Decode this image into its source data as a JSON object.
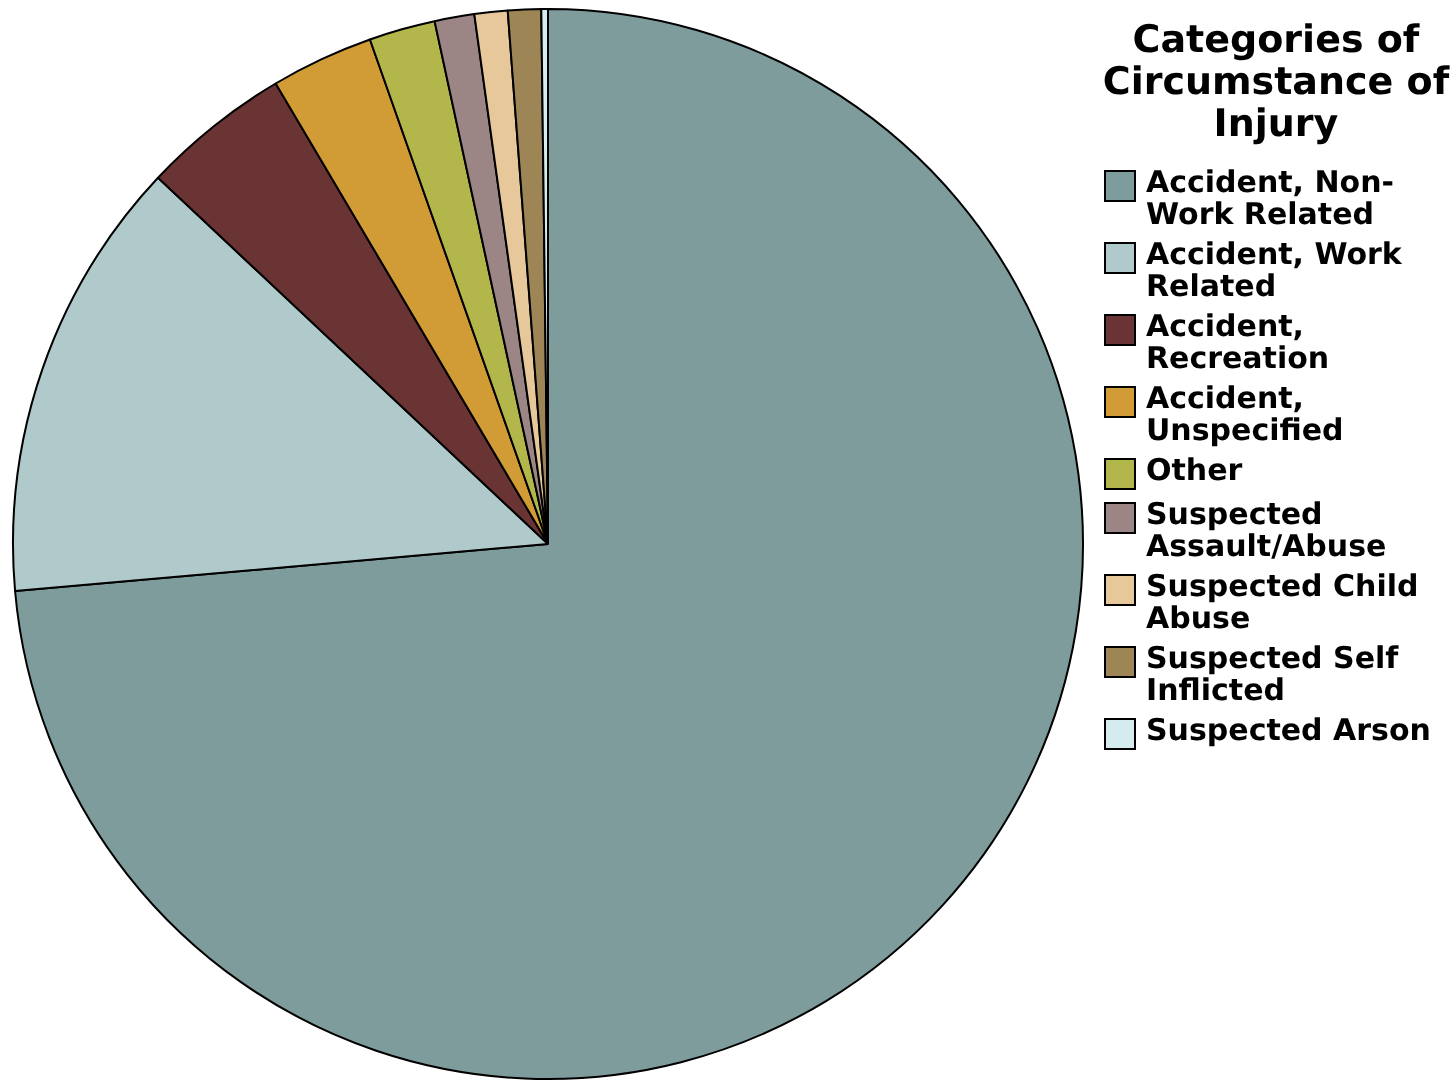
{
  "chart_data": {
    "type": "pie",
    "legend_title": "Categories of Circumstance of Injury",
    "legend": "right",
    "categories": [
      "Accident, Non-Work Related",
      "Accident, Work Related",
      "Accident, Recreation",
      "Accident, Unspecified",
      "Other",
      "Suspected Assault/Abuse",
      "Suspected Child Abuse",
      "Suspected Self Inflicted",
      "Suspected Arson"
    ],
    "values": [
      73.6,
      13.4,
      4.5,
      3.1,
      2.0,
      1.2,
      1.0,
      1.0,
      0.2
    ],
    "colors": [
      "#7f9c9c",
      "#b0c9ca",
      "#6b3434",
      "#d19c35",
      "#b3b74b",
      "#9b8585",
      "#e6c89a",
      "#9e8556",
      "#d4ecee"
    ]
  }
}
